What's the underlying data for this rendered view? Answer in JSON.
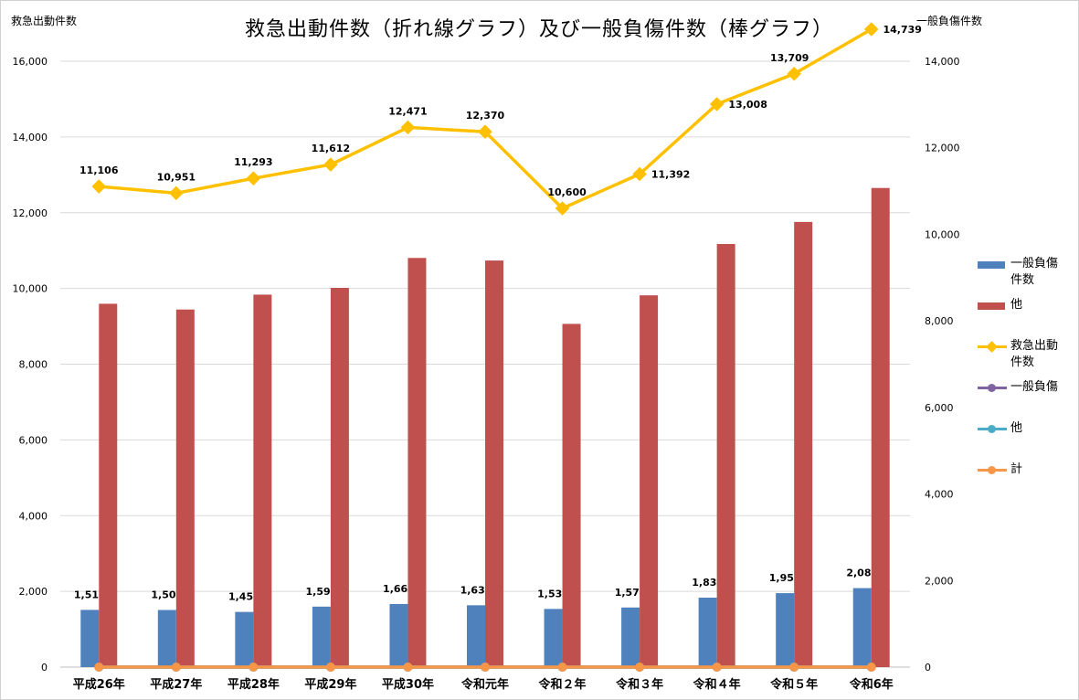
{
  "chart_data": {
    "type": "bar",
    "title": "救急出動件数（折れ線グラフ）及び一般負傷件数（棒グラフ）",
    "left_axis_label": "救急出動件数",
    "right_axis_label": "一般負傷件数",
    "categories": [
      "平成26年",
      "平成27年",
      "平成28年",
      "平成29年",
      "平成30年",
      "令和元年",
      "令和２年",
      "令和３年",
      "令和４年",
      "令和５年",
      "令和6年"
    ],
    "left_ylim": [
      0,
      16000
    ],
    "left_ticks": [
      "0",
      "2,000",
      "4,000",
      "6,000",
      "8,000",
      "10,000",
      "12,000",
      "14,000",
      "16,000"
    ],
    "right_ylim": [
      0,
      14000
    ],
    "right_ticks": [
      "0",
      "2,000",
      "4,000",
      "6,000",
      "8,000",
      "10,000",
      "12,000",
      "14,000"
    ],
    "series": [
      {
        "name": "一般負傷件数",
        "type": "bar",
        "axis": "left",
        "color": "#4f81bd",
        "values": [
          1511,
          1508,
          1457,
          1597,
          1666,
          1633,
          1536,
          1574,
          1834,
          1953,
          2086
        ],
        "labels": [
          "1,511",
          "1,508",
          "1,457",
          "1,597",
          "1,666",
          "1,633",
          "1,536",
          "1,574",
          "1,834",
          "1,953",
          "2,086"
        ]
      },
      {
        "name": "他",
        "type": "bar",
        "axis": "left",
        "color": "#c0504d",
        "values": [
          9595,
          9443,
          9836,
          10015,
          10805,
          10737,
          9064,
          9818,
          11174,
          11756,
          12653
        ]
      },
      {
        "name": "救急出動件数",
        "type": "line",
        "axis": "right",
        "color": "#ffc000",
        "values": [
          11106,
          10951,
          11293,
          11612,
          12471,
          12370,
          10600,
          11392,
          13008,
          13709,
          14739
        ],
        "labels": [
          "11,106",
          "10,951",
          "11,293",
          "11,612",
          "12,471",
          "12,370",
          "10,600",
          "11,392",
          "13,008",
          "13,709",
          "14,739"
        ]
      },
      {
        "name": "一般負傷",
        "type": "line",
        "axis": "right",
        "color": "#8064a2",
        "values": [
          0,
          0,
          0,
          0,
          0,
          0,
          0,
          0,
          0,
          0,
          0
        ]
      },
      {
        "name": "他",
        "type": "line",
        "axis": "right",
        "color": "#4bacc6",
        "values": [
          0,
          0,
          0,
          0,
          0,
          0,
          0,
          0,
          0,
          0,
          0
        ]
      },
      {
        "name": "計",
        "type": "line",
        "axis": "right",
        "color": "#f79646",
        "values": [
          0,
          0,
          0,
          0,
          0,
          0,
          0,
          0,
          0,
          0,
          0
        ]
      }
    ],
    "legend": [
      {
        "label": "一般負傷件数",
        "kind": "bar",
        "color": "#4f81bd"
      },
      {
        "label": "他",
        "kind": "bar",
        "color": "#c0504d"
      },
      {
        "label": "救急出動件数",
        "kind": "line",
        "color": "#ffc000"
      },
      {
        "label": "一般負傷",
        "kind": "line",
        "color": "#8064a2"
      },
      {
        "label": "他",
        "kind": "line",
        "color": "#4bacc6"
      },
      {
        "label": "計",
        "kind": "line",
        "color": "#f79646"
      }
    ],
    "legend_position": "right",
    "grid": true
  }
}
